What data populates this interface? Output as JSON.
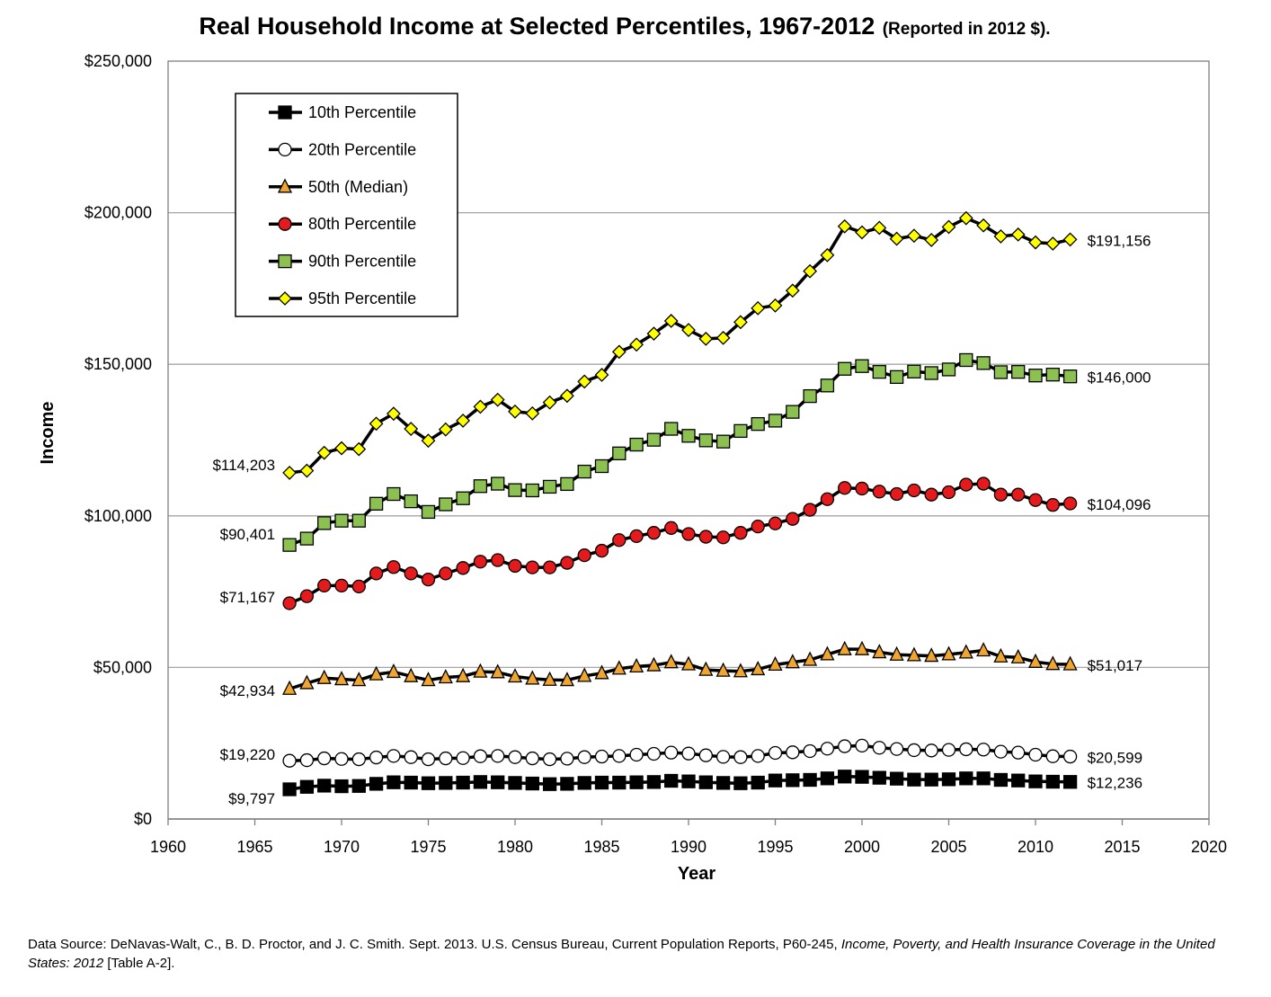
{
  "chart_data": {
    "type": "line",
    "title": "Real Household Income at Selected Percentiles, 1967-2012",
    "subtitle": "(Reported in 2012 $).",
    "xlabel": "Year",
    "ylabel": "Income",
    "xlim": [
      1960,
      2020
    ],
    "ylim": [
      0,
      250000
    ],
    "xticks": [
      1960,
      1965,
      1970,
      1975,
      1980,
      1985,
      1990,
      1995,
      2000,
      2005,
      2010,
      2015,
      2020
    ],
    "yticks": [
      0,
      50000,
      100000,
      150000,
      200000,
      250000
    ],
    "ytick_labels": [
      "$0",
      "$50,000",
      "$100,000",
      "$150,000",
      "$200,000",
      "$250,000"
    ],
    "grid": "horizontal",
    "legend_position": "top-left",
    "x": [
      1967,
      1968,
      1969,
      1970,
      1971,
      1972,
      1973,
      1974,
      1975,
      1976,
      1977,
      1978,
      1979,
      1980,
      1981,
      1982,
      1983,
      1984,
      1985,
      1986,
      1987,
      1988,
      1989,
      1990,
      1991,
      1992,
      1993,
      1994,
      1995,
      1996,
      1997,
      1998,
      1999,
      2000,
      2001,
      2002,
      2003,
      2004,
      2005,
      2006,
      2007,
      2008,
      2009,
      2010,
      2011,
      2012
    ],
    "series": [
      {
        "name": "10th Percentile",
        "marker": "square",
        "fill": "#000000",
        "start_label": "$9,797",
        "end_label": "$12,236",
        "values": [
          9797,
          10600,
          11000,
          10800,
          10900,
          11600,
          12100,
          12000,
          11800,
          11900,
          12000,
          12200,
          12100,
          11900,
          11700,
          11500,
          11600,
          11900,
          12000,
          12000,
          12100,
          12200,
          12600,
          12400,
          12100,
          11900,
          11800,
          12000,
          12700,
          12800,
          12900,
          13400,
          14000,
          13900,
          13600,
          13300,
          13000,
          13000,
          13100,
          13400,
          13400,
          12900,
          12700,
          12400,
          12300,
          12236
        ]
      },
      {
        "name": "20th Percentile",
        "marker": "circle",
        "fill": "#ffffff",
        "start_label": "$19,220",
        "end_label": "$20,599",
        "values": [
          19220,
          19400,
          20000,
          19800,
          19700,
          20300,
          20800,
          20400,
          19700,
          20000,
          20100,
          20700,
          20800,
          20400,
          20000,
          19700,
          19900,
          20400,
          20600,
          20800,
          21200,
          21500,
          21900,
          21600,
          21000,
          20500,
          20400,
          20800,
          21800,
          22000,
          22400,
          23200,
          24000,
          24200,
          23500,
          23100,
          22700,
          22600,
          22800,
          23000,
          22900,
          22200,
          21900,
          21200,
          20700,
          20599
        ]
      },
      {
        "name": "50th (Median)",
        "marker": "triangle",
        "fill": "#f0a530",
        "start_label": "$42,934",
        "end_label": "$51,017",
        "values": [
          42934,
          44800,
          46500,
          46100,
          45800,
          47700,
          48500,
          47100,
          45800,
          46700,
          47100,
          48600,
          48400,
          47000,
          46300,
          45900,
          45800,
          47200,
          48100,
          49600,
          50300,
          50700,
          51700,
          51000,
          49200,
          48900,
          48700,
          49400,
          50900,
          51700,
          52500,
          54300,
          56000,
          56000,
          55000,
          54200,
          54000,
          53800,
          54300,
          54900,
          55600,
          53600,
          53300,
          51800,
          51100,
          51017
        ]
      },
      {
        "name": "80th Percentile",
        "marker": "circle",
        "fill": "#e41a1c",
        "start_label": "$71,167",
        "end_label": "$104,096",
        "values": [
          71167,
          73500,
          77000,
          77000,
          76700,
          81000,
          83100,
          81000,
          79000,
          81000,
          82800,
          84900,
          85400,
          83500,
          83000,
          83000,
          84500,
          87000,
          88500,
          92000,
          93300,
          94400,
          96000,
          94000,
          93100,
          92900,
          94400,
          96500,
          97500,
          99000,
          102000,
          105500,
          109200,
          109000,
          108000,
          107200,
          108400,
          107000,
          107800,
          110300,
          110600,
          107000,
          107000,
          105200,
          103600,
          104096
        ]
      },
      {
        "name": "90th Percentile",
        "marker": "square",
        "fill": "#8cc152",
        "start_label": "$90,401",
        "end_label": "$146,000",
        "values": [
          90401,
          92500,
          97600,
          98400,
          98400,
          104000,
          107200,
          104800,
          101300,
          103800,
          105800,
          109800,
          110600,
          108500,
          108400,
          109600,
          110500,
          114600,
          116400,
          120600,
          123500,
          125100,
          128700,
          126400,
          124900,
          124500,
          128000,
          130300,
          131400,
          134300,
          139500,
          143000,
          148500,
          149400,
          147500,
          145800,
          147600,
          147100,
          148300,
          151400,
          150400,
          147400,
          147500,
          146300,
          146600,
          146000
        ]
      },
      {
        "name": "95th Percentile",
        "marker": "diamond",
        "fill": "#ffff00",
        "start_label": "$114,203",
        "end_label": "$191,156",
        "values": [
          114203,
          114900,
          120800,
          122300,
          122000,
          130400,
          133700,
          128700,
          124800,
          128500,
          131400,
          136000,
          138300,
          134400,
          133800,
          137400,
          139600,
          144300,
          146500,
          154100,
          156500,
          160100,
          164300,
          161300,
          158400,
          158700,
          163900,
          168500,
          169400,
          174300,
          180700,
          186000,
          195500,
          193500,
          195000,
          191400,
          192400,
          191000,
          195300,
          198200,
          195800,
          192200,
          192800,
          190200,
          189800,
          191156
        ]
      }
    ]
  },
  "source": {
    "prefix": "Data Source: DeNavas-Walt, C., B. D. Proctor, and J. C. Smith. Sept. 2013. U.S. Census Bureau, Current Population Reports, P60-245,",
    "report_title": "Income, Poverty, and Health Insurance Coverage in the United States: 2012",
    "suffix": "[Table A-2]."
  }
}
